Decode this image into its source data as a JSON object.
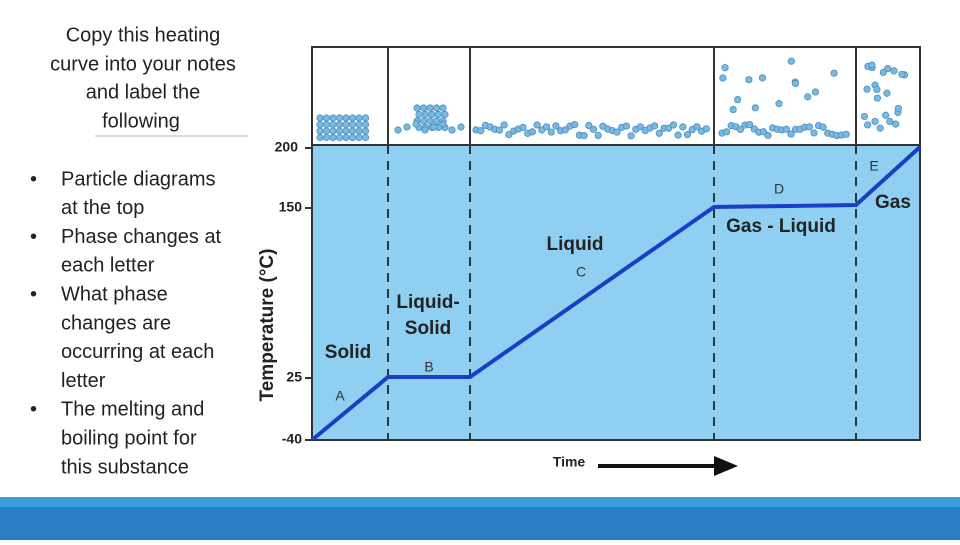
{
  "instructions": {
    "title": [
      "Copy this heating",
      "curve into your notes",
      "and label the",
      "following"
    ],
    "bullets": [
      [
        "Particle diagrams",
        "at the top"
      ],
      [
        "Phase changes at",
        "each letter"
      ],
      [
        "What phase",
        "changes are",
        "occurring at each",
        "letter"
      ],
      [
        "The melting and",
        "boiling point for",
        "this substance"
      ]
    ]
  },
  "diagram": {
    "y_axis_label": "Temperature (°C)",
    "x_axis_label": "Time",
    "y_ticks": [
      "200",
      "150",
      "25",
      "-40"
    ],
    "phases": [
      "Solid",
      "Liquid-",
      "Solid",
      "Liquid",
      "Gas - Liquid",
      "Gas"
    ],
    "letters": [
      "A",
      "B",
      "C",
      "D",
      "E"
    ]
  }
}
